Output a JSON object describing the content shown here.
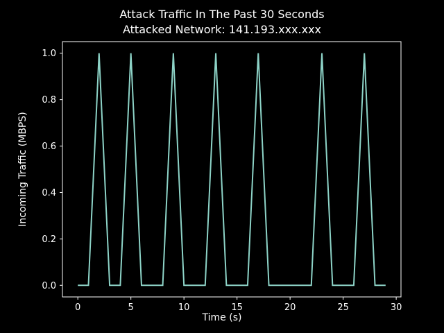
{
  "chart_data": {
    "type": "line",
    "title": "Attack Traffic In The Past 30 Seconds",
    "subtitle": "Attacked Network: 141.193.xxx.xxx",
    "xlabel": "Time (s)",
    "ylabel": "Incoming Traffic (MBPS)",
    "line_color": "#8dd3c7",
    "background_color": "#000000",
    "text_color": "#ffffff",
    "legend": "off",
    "grid": "off",
    "xlim": [
      -1.45,
      30.45
    ],
    "ylim": [
      -0.05,
      1.05
    ],
    "xticks": {
      "values": [
        0,
        5,
        10,
        15,
        20,
        25,
        30
      ],
      "labels": [
        "0",
        "5",
        "10",
        "15",
        "20",
        "25",
        "30"
      ]
    },
    "yticks": {
      "values": [
        0,
        0.2,
        0.4,
        0.6,
        0.8,
        1.0
      ],
      "labels": [
        "0.0",
        "0.2",
        "0.4",
        "0.6",
        "0.8",
        "1.0"
      ]
    },
    "x": [
      0,
      1,
      2,
      3,
      4,
      5,
      6,
      7,
      8,
      9,
      10,
      11,
      12,
      13,
      14,
      15,
      16,
      17,
      18,
      19,
      20,
      21,
      22,
      23,
      24,
      25,
      26,
      27,
      28,
      29
    ],
    "y": [
      0,
      0,
      1,
      0,
      0,
      1,
      0,
      0,
      0,
      1,
      0,
      0,
      0,
      1,
      0,
      0,
      0,
      1,
      0,
      0,
      0,
      0,
      0,
      1,
      0,
      0,
      0,
      1,
      0,
      0
    ]
  }
}
